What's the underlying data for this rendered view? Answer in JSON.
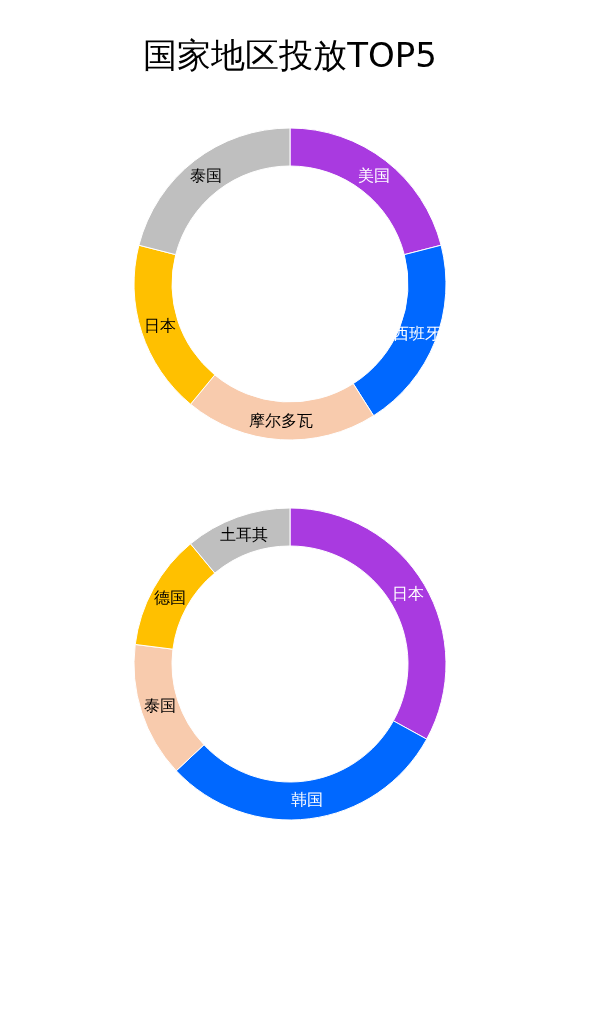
{
  "chart_data": [
    {
      "type": "donut",
      "title": "国家地区投放TOP5",
      "categories": [
        "美国",
        "西班牙",
        "摩尔多瓦",
        "日本",
        "泰国"
      ],
      "values": [
        21,
        20,
        20,
        18,
        21
      ],
      "colors": [
        "#a93ae0",
        "#0068ff",
        "#f8cbad",
        "#ffc000",
        "#bfbfbf"
      ],
      "legend": false
    },
    {
      "type": "donut",
      "categories": [
        "日本",
        "韩国",
        "泰国",
        "德国",
        "土耳其"
      ],
      "values": [
        33,
        30,
        14,
        12,
        11
      ],
      "colors": [
        "#a93ae0",
        "#0068ff",
        "#f8cbad",
        "#ffc000",
        "#bfbfbf"
      ],
      "legend": false
    }
  ]
}
